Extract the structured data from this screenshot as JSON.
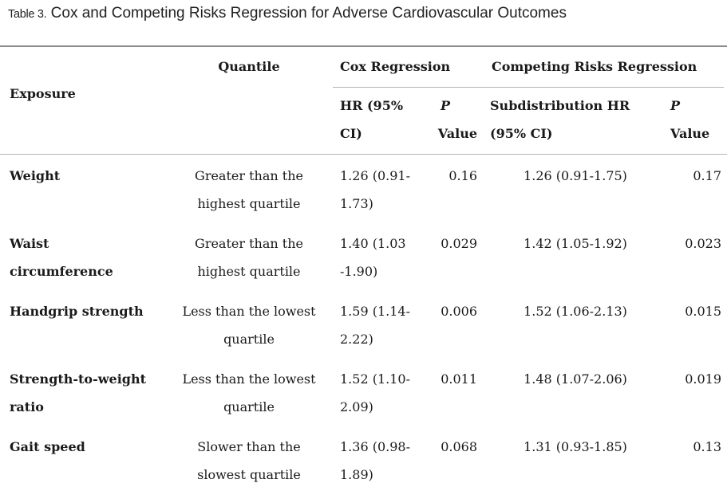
{
  "caption": {
    "label": "Table 3.",
    "title": "Cox and Competing Risks Regression for Adverse Cardiovascular Outcomes"
  },
  "header": {
    "exposure": "Exposure",
    "quantile": "Quantile",
    "cox_group": "Cox Regression",
    "crr_group": "Competing Risks Regression",
    "hr_line1": "HR (95%",
    "hr_line2": "CI)",
    "p_line1": "P",
    "p_line2": "Value",
    "shr_line1": "Subdistribution HR",
    "shr_line2": "(95% CI)",
    "p2_line1": "P",
    "p2_line2": "Value"
  },
  "rows": [
    {
      "exposure": [
        "Weight",
        ""
      ],
      "quantile": [
        "Greater than the",
        "highest quartile"
      ],
      "hr": [
        "1.26 (0.91-",
        "1.73)"
      ],
      "p": "0.16",
      "shr": "1.26 (0.91-1.75)",
      "p2": "0.17"
    },
    {
      "exposure": [
        "Waist",
        "circumference"
      ],
      "quantile": [
        "Greater than the",
        "highest quartile"
      ],
      "hr": [
        "1.40 (1.03",
        "-1.90)"
      ],
      "p": "0.029",
      "shr": "1.42 (1.05-1.92)",
      "p2": "0.023"
    },
    {
      "exposure": [
        "Handgrip strength",
        ""
      ],
      "quantile": [
        "Less than the lowest",
        "quartile"
      ],
      "hr": [
        "1.59 (1.14-",
        "2.22)"
      ],
      "p": "0.006",
      "shr": "1.52 (1.06-2.13)",
      "p2": "0.015"
    },
    {
      "exposure": [
        "Strength-to-weight",
        "ratio"
      ],
      "quantile": [
        "Less than the lowest",
        "quartile"
      ],
      "hr": [
        "1.52 (1.10-",
        "2.09)"
      ],
      "p": "0.011",
      "shr": "1.48 (1.07-2.06)",
      "p2": "0.019"
    },
    {
      "exposure": [
        "Gait speed",
        ""
      ],
      "quantile": [
        "Slower than the",
        "slowest quartile"
      ],
      "hr": [
        "1.36 (0.98-",
        "1.89)"
      ],
      "p": "0.068",
      "shr": "1.31 (0.93-1.85)",
      "p2": "0.13"
    }
  ]
}
